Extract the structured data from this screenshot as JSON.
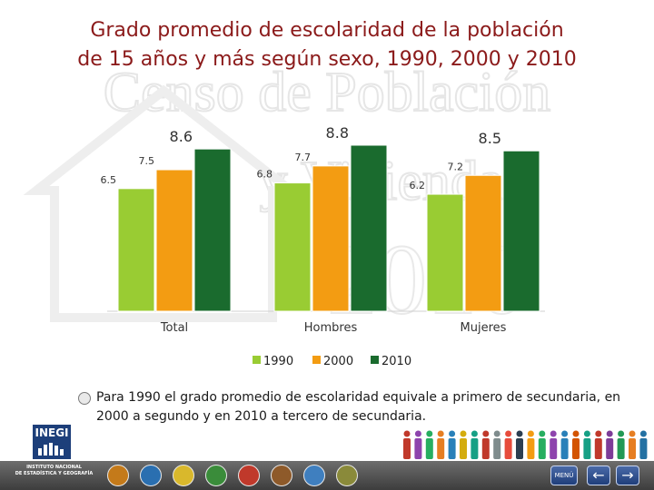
{
  "title_line1": "Grado promedio de escolaridad de la población",
  "title_line2": "de 15 años y más según sexo, 1990, 2000 y 2010",
  "watermark_line1": "Censo de Población",
  "watermark_line2": "y Vivienda",
  "watermark_line3": "2010",
  "chart_data": {
    "type": "bar",
    "categories": [
      "Total",
      "Hombres",
      "Mujeres"
    ],
    "series": [
      {
        "name": "1990",
        "values": [
          6.5,
          6.8,
          6.2
        ],
        "color": "#99cc33"
      },
      {
        "name": "2000",
        "values": [
          7.5,
          7.7,
          7.2
        ],
        "color": "#f39c12"
      },
      {
        "name": "2010",
        "values": [
          8.6,
          8.8,
          8.5
        ],
        "color": "#1a6b2e"
      }
    ],
    "ylim": [
      0,
      9
    ],
    "legend": "bottom",
    "grid": false
  },
  "note": "Para 1990 el grado promedio de escolaridad equivale a primero de secundaria, en 2000 a segundo y en 2010 a tercero de secundaria.",
  "logo": {
    "brand": "INEGI",
    "caption_line1": "INSTITUTO NACIONAL",
    "caption_line2": "DE ESTADÍSTICA Y GEOGRAFÍA"
  },
  "nav": {
    "menu_label": "MENÚ",
    "back_glyph": "←",
    "forward_glyph": "→"
  },
  "colors": {
    "title": "#8b1a1a",
    "footer": "#4a4a4a"
  }
}
